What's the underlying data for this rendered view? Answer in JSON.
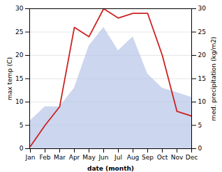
{
  "chart_data": {
    "type": "line",
    "categories": [
      "Jan",
      "Feb",
      "Mar",
      "Apr",
      "May",
      "Jun",
      "Jul",
      "Aug",
      "Sep",
      "Oct",
      "Nov",
      "Dec"
    ],
    "series": [
      {
        "type": "area",
        "color": "#b8c4e8",
        "values": [
          6,
          9,
          9,
          13,
          22,
          26,
          21,
          24,
          16,
          13,
          12,
          11
        ]
      },
      {
        "type": "line",
        "color": "#cc2222",
        "axis": "y2",
        "values": [
          0.5,
          5,
          9,
          26,
          24,
          30,
          28,
          29,
          29,
          20,
          8,
          7
        ]
      }
    ],
    "xlabel": "date (month)",
    "ylabel": "max temp (C)",
    "y2label": "med. precipitation (kg/m2)",
    "ylim": [
      0,
      30
    ],
    "yticks": [
      0,
      5,
      10,
      15,
      20,
      25,
      30
    ],
    "y2lim": [
      0,
      30
    ],
    "y2ticks": [
      0,
      5,
      10,
      15,
      20,
      25,
      30
    ],
    "grid": true
  }
}
